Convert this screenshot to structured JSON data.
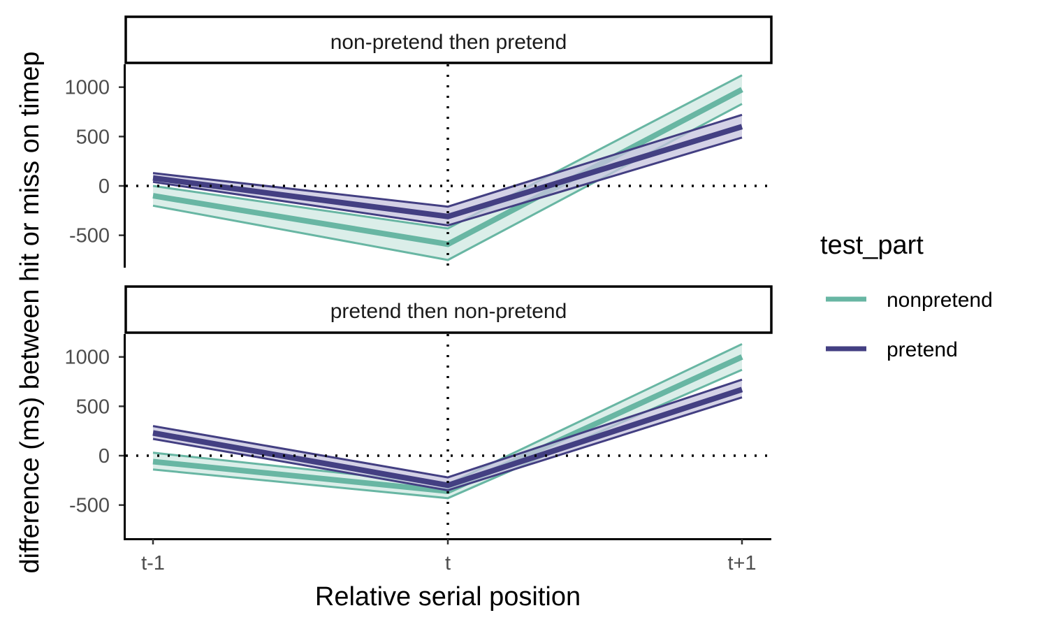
{
  "chart_data": {
    "type": "line",
    "xlabel": "Relative serial position",
    "ylabel": "difference (ms) between hit or miss on timep",
    "categories": [
      "t-1",
      "t",
      "t+1"
    ],
    "yticks": [
      -500,
      0,
      500,
      1000
    ],
    "ylim": [
      -820,
      1230
    ],
    "reference_lines": {
      "x": "t",
      "y": 0,
      "style": "dotted"
    },
    "legend": {
      "title": "test_part",
      "position": "right",
      "entries": [
        {
          "name": "nonpretend",
          "color": "#68b6a3"
        },
        {
          "name": "pretend",
          "color": "#433f82"
        }
      ]
    },
    "panels": [
      {
        "strip": "non-pretend then pretend",
        "series": [
          {
            "name": "nonpretend",
            "color": "#68b6a3",
            "fill": "#cfe8e1",
            "values": [
              -100,
              -590,
              975
            ],
            "lower": [
              -200,
              -750,
              830
            ],
            "upper": [
              0,
              -430,
              1120
            ]
          },
          {
            "name": "pretend",
            "color": "#433f82",
            "fill": "#c5c3dd",
            "values": [
              80,
              -310,
              600
            ],
            "lower": [
              40,
              -400,
              490
            ],
            "upper": [
              130,
              -210,
              720
            ]
          }
        ]
      },
      {
        "strip": "pretend then non-pretend",
        "series": [
          {
            "name": "nonpretend",
            "color": "#68b6a3",
            "fill": "#cfe8e1",
            "values": [
              -60,
              -360,
              1000
            ],
            "lower": [
              -140,
              -430,
              870
            ],
            "upper": [
              30,
              -290,
              1130
            ]
          },
          {
            "name": "pretend",
            "color": "#433f82",
            "fill": "#c5c3dd",
            "values": [
              230,
              -300,
              670
            ],
            "lower": [
              170,
              -350,
              590
            ],
            "upper": [
              300,
              -220,
              770
            ]
          }
        ]
      }
    ]
  }
}
